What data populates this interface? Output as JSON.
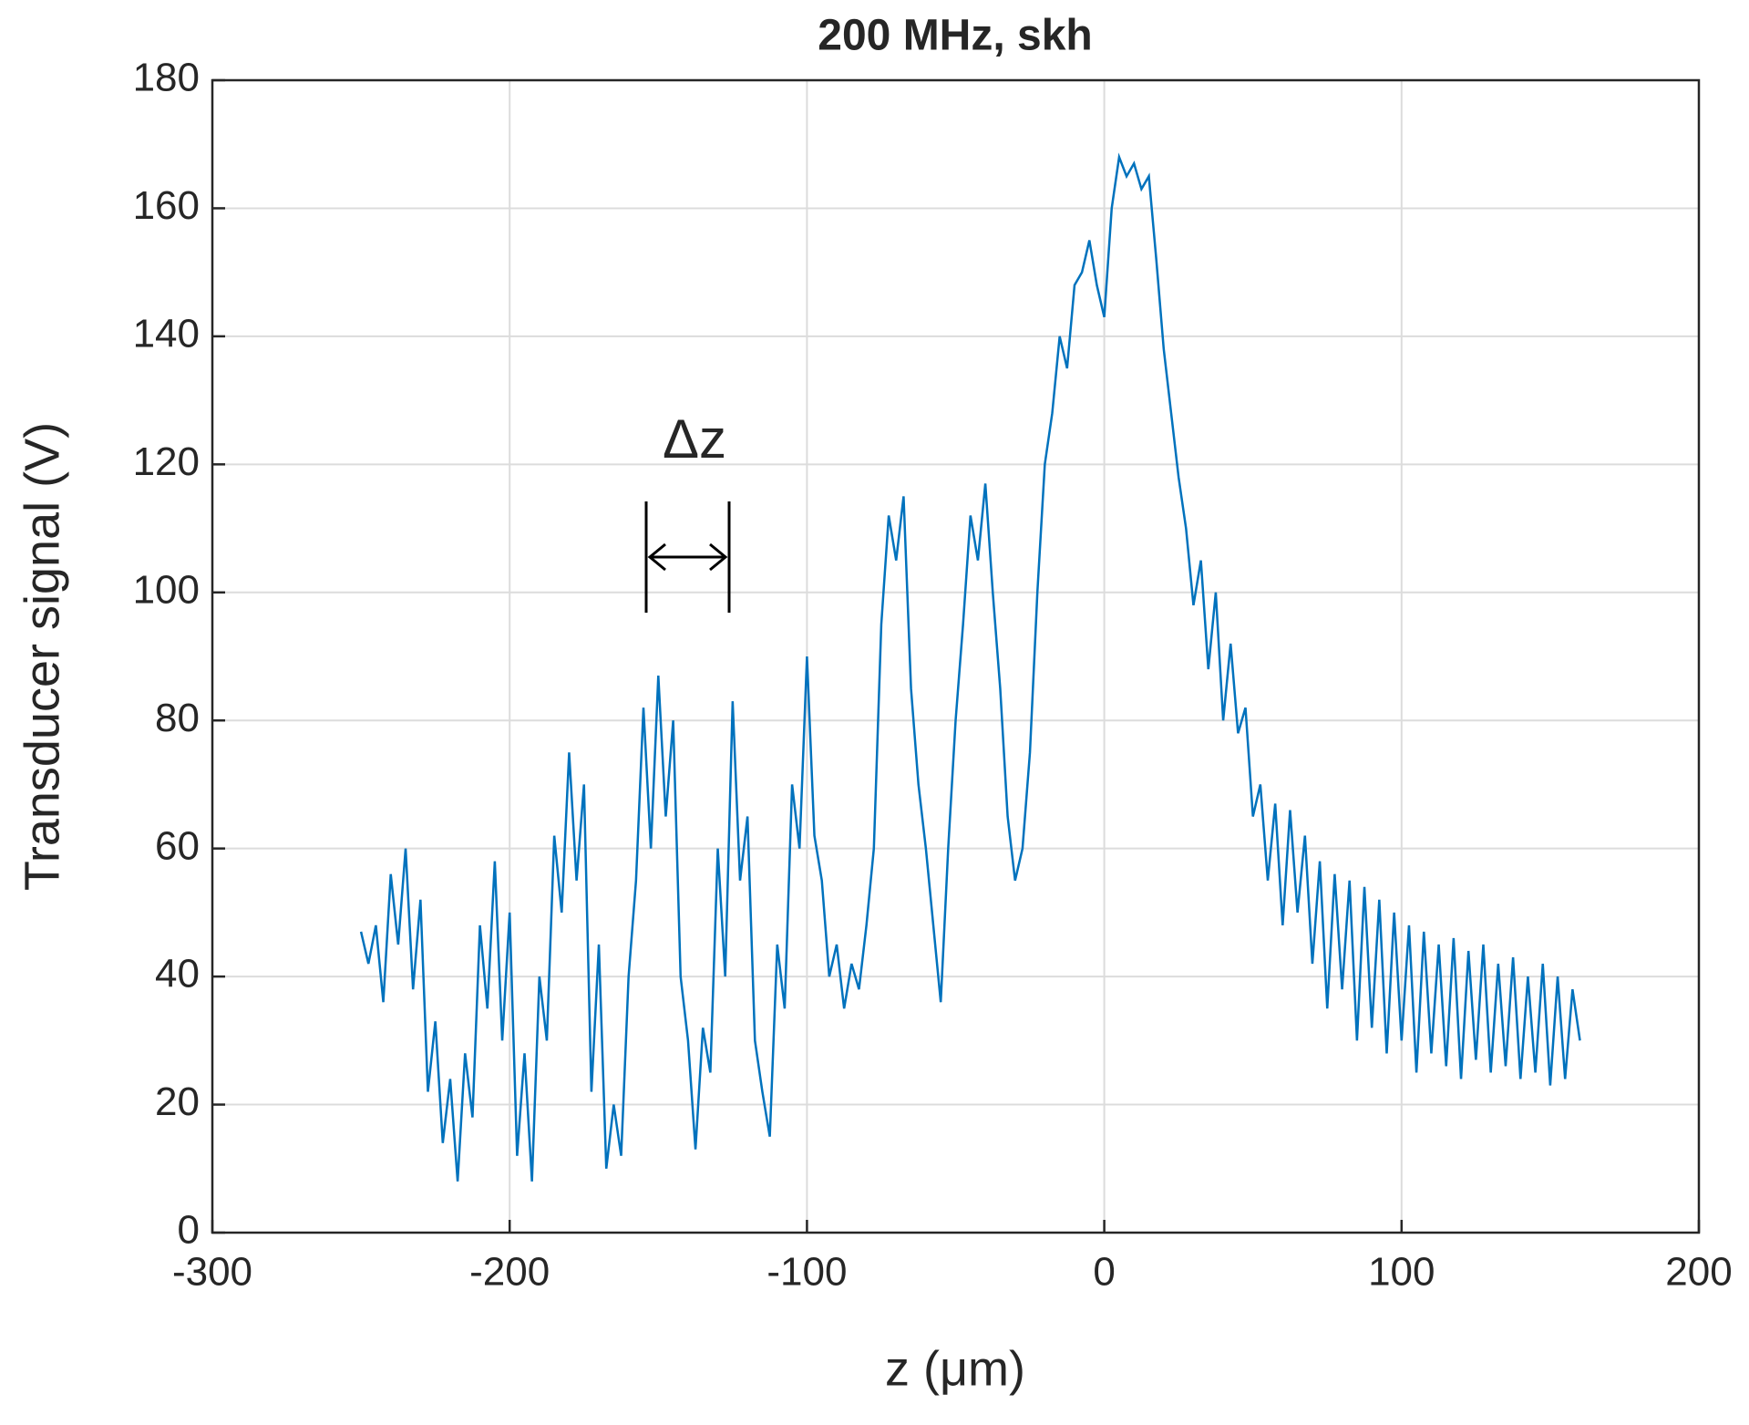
{
  "chart_data": {
    "type": "line",
    "title": "200 MHz, skh",
    "xlabel": "z (μm)",
    "ylabel": "Transducer signal (V)",
    "annotations": [
      "Δz"
    ],
    "xlim": [
      -300,
      200
    ],
    "xticks": [
      -300,
      -200,
      -100,
      0,
      100,
      200
    ],
    "ylim": [
      0,
      180
    ],
    "yticks": [
      0,
      20,
      40,
      60,
      80,
      100,
      120,
      140,
      160,
      180
    ],
    "grid": true,
    "color": "#0072bd",
    "x": [
      -250,
      -247.5,
      -245,
      -242.5,
      -240,
      -237.5,
      -235,
      -232.5,
      -230,
      -227.5,
      -225,
      -222.5,
      -220,
      -217.5,
      -215,
      -212.5,
      -210,
      -207.5,
      -205,
      -202.5,
      -200,
      -197.5,
      -195,
      -192.5,
      -190,
      -187.5,
      -185,
      -182.5,
      -180,
      -177.5,
      -175,
      -172.5,
      -170,
      -167.5,
      -165,
      -162.5,
      -160,
      -157.5,
      -155,
      -152.5,
      -150,
      -147.5,
      -145,
      -142.5,
      -140,
      -137.5,
      -135,
      -132.5,
      -130,
      -127.5,
      -125,
      -122.5,
      -120,
      -117.5,
      -115,
      -112.5,
      -110,
      -107.5,
      -105,
      -102.5,
      -100,
      -97.5,
      -95,
      -92.5,
      -90,
      -87.5,
      -85,
      -82.5,
      -80,
      -77.5,
      -75,
      -72.5,
      -70,
      -67.5,
      -65,
      -62.5,
      -60,
      -57.5,
      -55,
      -52.5,
      -50,
      -47.5,
      -45,
      -42.5,
      -40,
      -37.5,
      -35,
      -32.5,
      -30,
      -27.5,
      -25,
      -22.5,
      -20,
      -17.5,
      -15,
      -12.5,
      -10,
      -7.5,
      -5,
      -2.5,
      0,
      2.5,
      5,
      7.5,
      10,
      12.5,
      15,
      17.5,
      20,
      22.5,
      25,
      27.5,
      30,
      32.5,
      35,
      37.5,
      40,
      42.5,
      45,
      47.5,
      50,
      52.5,
      55,
      57.5,
      60,
      62.5,
      65,
      67.5,
      70,
      72.5,
      75,
      77.5,
      80,
      82.5,
      85,
      87.5,
      90,
      92.5,
      95,
      97.5,
      100,
      102.5,
      105,
      107.5,
      110,
      112.5,
      115,
      117.5,
      120,
      122.5,
      125,
      127.5,
      130,
      132.5,
      135,
      137.5,
      140,
      142.5,
      145,
      147.5,
      150,
      152.5,
      155,
      157.5,
      160
    ],
    "values": [
      47,
      42,
      48,
      36,
      56,
      45,
      60,
      38,
      52,
      22,
      33,
      14,
      24,
      8,
      28,
      18,
      48,
      35,
      58,
      30,
      50,
      12,
      28,
      8,
      40,
      30,
      62,
      50,
      75,
      55,
      70,
      22,
      45,
      10,
      20,
      12,
      40,
      55,
      82,
      60,
      87,
      65,
      80,
      40,
      30,
      13,
      32,
      25,
      60,
      40,
      83,
      55,
      65,
      30,
      22,
      15,
      45,
      35,
      70,
      60,
      90,
      62,
      55,
      40,
      45,
      35,
      42,
      38,
      48,
      60,
      95,
      112,
      105,
      115,
      85,
      70,
      60,
      48,
      36,
      60,
      80,
      95,
      112,
      105,
      117,
      100,
      85,
      65,
      55,
      60,
      75,
      100,
      120,
      128,
      140,
      135,
      148,
      150,
      155,
      148,
      143,
      160,
      168,
      165,
      167,
      163,
      165,
      152,
      138,
      128,
      118,
      110,
      98,
      105,
      88,
      100,
      80,
      92,
      78,
      82,
      65,
      70,
      55,
      67,
      48,
      66,
      50,
      62,
      42,
      58,
      35,
      56,
      38,
      55,
      30,
      54,
      32,
      52,
      28,
      50,
      30,
      48,
      25,
      47,
      28,
      45,
      26,
      46,
      24,
      44,
      27,
      45,
      25,
      42,
      26,
      43,
      24,
      40,
      25,
      42,
      23,
      40,
      24,
      38,
      30
    ]
  }
}
